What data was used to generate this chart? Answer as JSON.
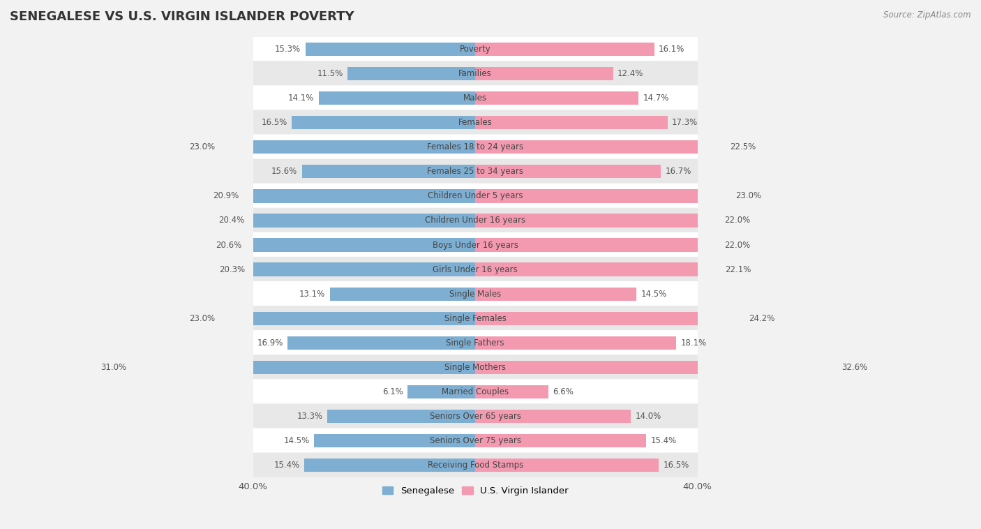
{
  "title": "SENEGALESE VS U.S. VIRGIN ISLANDER POVERTY",
  "source": "Source: ZipAtlas.com",
  "categories": [
    "Poverty",
    "Families",
    "Males",
    "Females",
    "Females 18 to 24 years",
    "Females 25 to 34 years",
    "Children Under 5 years",
    "Children Under 16 years",
    "Boys Under 16 years",
    "Girls Under 16 years",
    "Single Males",
    "Single Females",
    "Single Fathers",
    "Single Mothers",
    "Married Couples",
    "Seniors Over 65 years",
    "Seniors Over 75 years",
    "Receiving Food Stamps"
  ],
  "senegalese": [
    15.3,
    11.5,
    14.1,
    16.5,
    23.0,
    15.6,
    20.9,
    20.4,
    20.6,
    20.3,
    13.1,
    23.0,
    16.9,
    31.0,
    6.1,
    13.3,
    14.5,
    15.4
  ],
  "virgin_islander": [
    16.1,
    12.4,
    14.7,
    17.3,
    22.5,
    16.7,
    23.0,
    22.0,
    22.0,
    22.1,
    14.5,
    24.2,
    18.1,
    32.6,
    6.6,
    14.0,
    15.4,
    16.5
  ],
  "blue_color": "#7eaed1",
  "pink_color": "#f49ab0",
  "bar_height": 0.55,
  "xlim": [
    0,
    40
  ],
  "background_color": "#f2f2f2",
  "row_bg_light": "#ffffff",
  "row_bg_dark": "#e8e8e8",
  "legend_blue_label": "Senegalese",
  "legend_pink_label": "U.S. Virgin Islander",
  "label_fontsize": 8.5,
  "value_fontsize": 8.5,
  "title_fontsize": 13
}
